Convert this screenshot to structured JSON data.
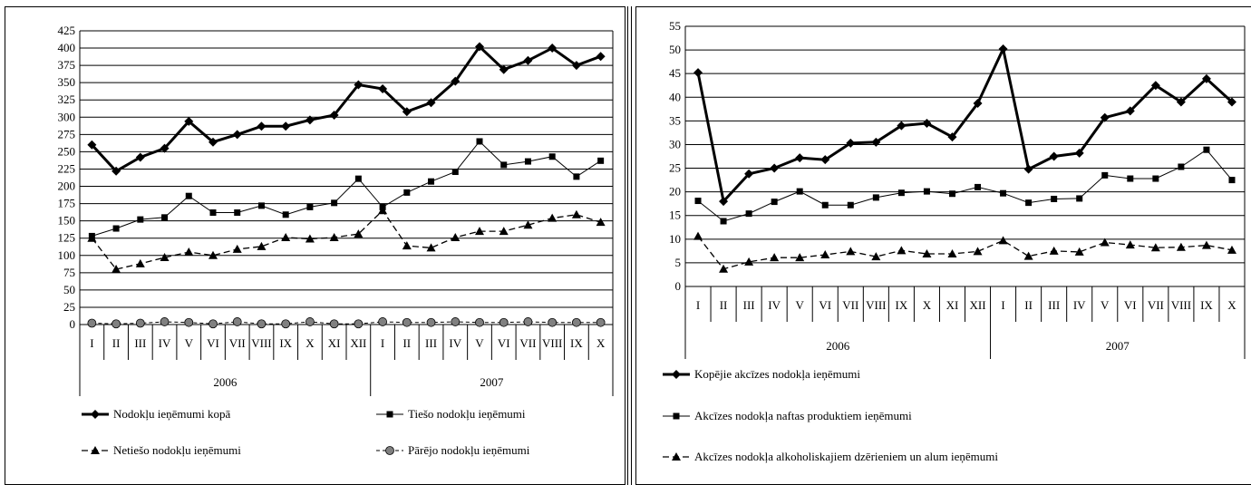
{
  "header_text": "",
  "chart_data": [
    {
      "type": "line",
      "title": "",
      "xlabel": "",
      "ylabel": "",
      "ylim": [
        0,
        425
      ],
      "ytick_step": 25,
      "grid": true,
      "legend_position": "bottom",
      "categories": [
        "I",
        "II",
        "III",
        "IV",
        "V",
        "VI",
        "VII",
        "VIII",
        "IX",
        "X",
        "XI",
        "XII",
        "I",
        "II",
        "III",
        "IV",
        "V",
        "VI",
        "VII",
        "VIII",
        "IX",
        "X"
      ],
      "groups": [
        {
          "label": "2006",
          "count": 12
        },
        {
          "label": "2007",
          "count": 10
        }
      ],
      "series": [
        {
          "name": "Nodokļu ieņēmumi kopā",
          "marker": "diamond",
          "stroke": "#000000",
          "width": 3,
          "dash": "",
          "values": [
            260,
            222,
            242,
            255,
            294,
            264,
            275,
            287,
            287,
            296,
            303,
            347,
            341,
            308,
            321,
            352,
            402,
            369,
            382,
            400,
            375,
            388
          ]
        },
        {
          "name": "Tiešo nodokļu ieņēmumi",
          "marker": "square",
          "stroke": "#000000",
          "width": 1,
          "dash": "",
          "values": [
            128,
            139,
            152,
            155,
            186,
            162,
            162,
            172,
            159,
            170,
            176,
            211,
            170,
            191,
            207,
            221,
            265,
            231,
            236,
            243,
            214,
            237
          ]
        },
        {
          "name": "Netiešo nodokļu ieņēmumi",
          "marker": "triangle",
          "stroke": "#000000",
          "width": 1.3,
          "dash": "7,4",
          "values": [
            125,
            80,
            88,
            97,
            105,
            100,
            109,
            113,
            126,
            124,
            126,
            131,
            165,
            114,
            111,
            126,
            135,
            135,
            144,
            154,
            159,
            148
          ]
        },
        {
          "name": "Pārējo nodokļu ieņēmumi",
          "marker": "circle",
          "stroke": "#000000",
          "width": 1,
          "dash": "4,3",
          "values": [
            2,
            1,
            2,
            4,
            3,
            1,
            4,
            1,
            1,
            4,
            1,
            1,
            4,
            3,
            3,
            4,
            3,
            3,
            4,
            3,
            3,
            3
          ]
        }
      ]
    },
    {
      "type": "line",
      "title": "",
      "xlabel": "",
      "ylabel": "",
      "ylim": [
        0,
        55
      ],
      "ytick_step": 5,
      "grid": true,
      "legend_position": "bottom",
      "categories": [
        "I",
        "II",
        "III",
        "IV",
        "V",
        "VI",
        "VII",
        "VIII",
        "IX",
        "X",
        "XI",
        "XII",
        "I",
        "II",
        "III",
        "IV",
        "V",
        "VI",
        "VII",
        "VIII",
        "IX",
        "X"
      ],
      "groups": [
        {
          "label": "2006",
          "count": 12
        },
        {
          "label": "2007",
          "count": 10
        }
      ],
      "series": [
        {
          "name": "Kopējie akcīzes nodokļa ieņēmumi",
          "marker": "diamond",
          "stroke": "#000000",
          "width": 3,
          "dash": "",
          "values": [
            45.2,
            18,
            23.8,
            25,
            27.2,
            26.8,
            30.3,
            30.5,
            34,
            34.5,
            31.6,
            38.7,
            50.2,
            24.8,
            27.5,
            28.2,
            35.7,
            37.1,
            42.5,
            39,
            43.9,
            39
          ]
        },
        {
          "name": "Akcīzes nodokļa naftas produktiem ieņēmumi",
          "marker": "square",
          "stroke": "#000000",
          "width": 1,
          "dash": "",
          "values": [
            18.1,
            13.8,
            15.4,
            17.9,
            20.1,
            17.2,
            17.2,
            18.8,
            19.8,
            20.1,
            19.6,
            21,
            19.7,
            17.7,
            18.5,
            18.6,
            23.5,
            22.8,
            22.8,
            25.3,
            28.9,
            22.5
          ]
        },
        {
          "name": "Akcīzes nodokļa alkoholiskajiem dzērieniem un alum ieņēmumi",
          "marker": "triangle",
          "stroke": "#000000",
          "width": 1.3,
          "dash": "7,4",
          "values": [
            10.6,
            3.7,
            5.2,
            6.1,
            6.1,
            6.7,
            7.4,
            6.3,
            7.6,
            6.9,
            6.9,
            7.4,
            9.7,
            6.4,
            7.5,
            7.3,
            9.3,
            8.8,
            8.2,
            8.3,
            8.7,
            7.7
          ]
        }
      ]
    }
  ]
}
